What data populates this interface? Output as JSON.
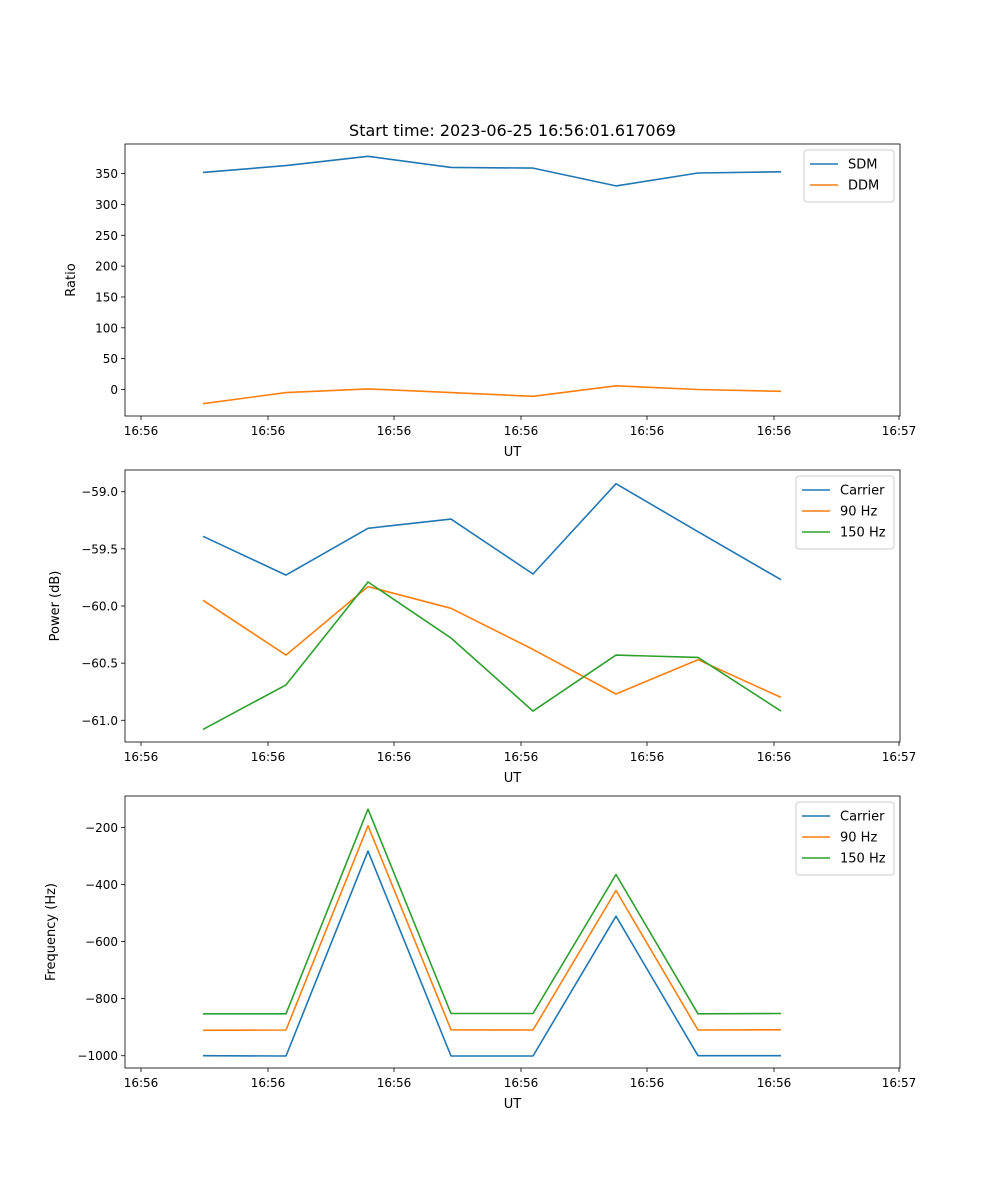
{
  "title": "Start time: 2023-06-25 16:56:01.617069",
  "colors": {
    "blue": "#1f77b4",
    "orange": "#ff7f0e",
    "green": "#2ca02c"
  },
  "chart_data": [
    {
      "type": "line",
      "title": "Start time: 2023-06-25 16:56:01.617069",
      "xlabel": "UT",
      "ylabel": "Ratio",
      "x_tick_labels": [
        "16:56",
        "16:56",
        "16:56",
        "16:56",
        "16:56",
        "16:56",
        "16:56",
        "16:57"
      ],
      "y_ticks": [
        0,
        50,
        100,
        150,
        200,
        250,
        300,
        350
      ],
      "y_tick_labels": [
        "0",
        "50",
        "100",
        "150",
        "200",
        "250",
        "300",
        "350"
      ],
      "ylim": [
        -43,
        398
      ],
      "legend_position": "top-right",
      "grid": false,
      "series": [
        {
          "name": "SDM",
          "color": "#1f77b4",
          "values": [
            352,
            363,
            378,
            360,
            359,
            330,
            351,
            353
          ]
        },
        {
          "name": "DDM",
          "color": "#ff7f0e",
          "values": [
            -23,
            -5,
            1,
            -5,
            -11,
            6,
            0,
            -3
          ]
        }
      ]
    },
    {
      "type": "line",
      "xlabel": "UT",
      "ylabel": "Power (dB)",
      "x_tick_labels": [
        "16:56",
        "16:56",
        "16:56",
        "16:56",
        "16:56",
        "16:56",
        "16:56",
        "16:57"
      ],
      "y_ticks": [
        -61.0,
        -60.5,
        -60.0,
        -59.5,
        -59.0
      ],
      "y_tick_labels": [
        "−61.0",
        "−60.5",
        "−60.0",
        "−59.5",
        "−59.0"
      ],
      "ylim": [
        -61.19,
        -58.81
      ],
      "legend_position": "top-right",
      "grid": false,
      "series": [
        {
          "name": "Carrier",
          "color": "#1f77b4",
          "values": [
            -59.39,
            -59.73,
            -59.32,
            -59.24,
            -59.72,
            -58.93,
            -59.35,
            -59.77
          ]
        },
        {
          "name": "90 Hz",
          "color": "#ff7f0e",
          "values": [
            -59.95,
            -60.43,
            -59.83,
            -60.02,
            -60.38,
            -60.77,
            -60.47,
            -60.8
          ]
        },
        {
          "name": "150 Hz",
          "color": "#2ca02c",
          "values": [
            -61.08,
            -60.69,
            -59.79,
            -60.28,
            -60.92,
            -60.43,
            -60.45,
            -60.92
          ]
        }
      ]
    },
    {
      "type": "line",
      "xlabel": "UT",
      "ylabel": "Frequency (Hz)",
      "x_tick_labels": [
        "16:56",
        "16:56",
        "16:56",
        "16:56",
        "16:56",
        "16:56",
        "16:56",
        "16:57"
      ],
      "y_ticks": [
        -1000,
        -800,
        -600,
        -400,
        -200
      ],
      "y_tick_labels": [
        "−1000",
        "−800",
        "−600",
        "−400",
        "−200"
      ],
      "ylim": [
        -1043,
        -90
      ],
      "legend_position": "top-right",
      "grid": false,
      "series": [
        {
          "name": "Carrier",
          "color": "#1f77b4",
          "values": [
            -1000,
            -1001,
            -283,
            -1001,
            -1001,
            -511,
            -1000,
            -1000
          ]
        },
        {
          "name": "90 Hz",
          "color": "#ff7f0e",
          "values": [
            -911,
            -910,
            -194,
            -909,
            -910,
            -421,
            -910,
            -909
          ]
        },
        {
          "name": "150 Hz",
          "color": "#2ca02c",
          "values": [
            -853,
            -853,
            -136,
            -852,
            -852,
            -365,
            -853,
            -852
          ]
        }
      ]
    }
  ]
}
